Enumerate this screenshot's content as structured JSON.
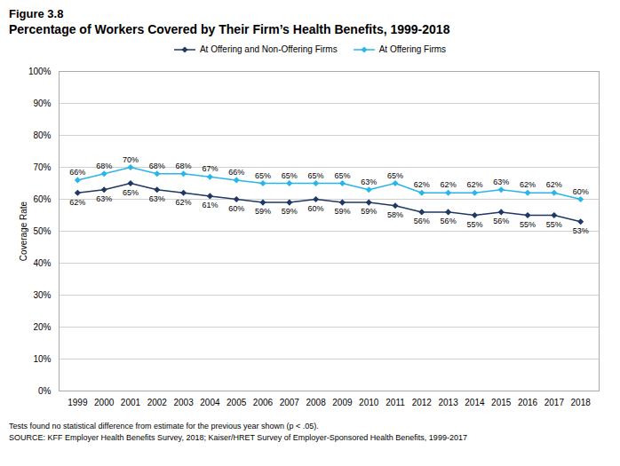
{
  "chart_data": {
    "type": "line",
    "title": "Figure 3.8",
    "subtitle": "Percentage of Workers Covered by Their Firm’s Health Benefits, 1999-2018",
    "x": [
      1999,
      2000,
      2001,
      2002,
      2003,
      2004,
      2005,
      2006,
      2007,
      2008,
      2009,
      2010,
      2011,
      2012,
      2013,
      2014,
      2015,
      2016,
      2017,
      2018
    ],
    "series": [
      {
        "name": "At Offering and Non-Offering Firms",
        "color": "#1f3864",
        "values": [
          62,
          63,
          65,
          63,
          62,
          61,
          60,
          59,
          59,
          60,
          59,
          59,
          58,
          56,
          56,
          55,
          56,
          55,
          55,
          53
        ],
        "value_labels": [
          "62%",
          "63%",
          "65%",
          "63%",
          "62%",
          "61%",
          "60%",
          "59%",
          "59%",
          "60%",
          "59%",
          "59%",
          "58%",
          "56%",
          "56%",
          "55%",
          "56%",
          "55%",
          "55%",
          "53%"
        ]
      },
      {
        "name": "At Offering Firms",
        "color": "#29b5e8",
        "values": [
          66,
          68,
          70,
          68,
          68,
          67,
          66,
          65,
          65,
          65,
          65,
          63,
          65,
          62,
          62,
          62,
          63,
          62,
          62,
          60
        ],
        "value_labels": [
          "66%",
          "68%",
          "70%",
          "68%",
          "68%",
          "67%",
          "66%",
          "65%",
          "65%",
          "65%",
          "65%",
          "63%",
          "65%",
          "62%",
          "62%",
          "62%",
          "63%",
          "62%",
          "62%",
          "60%"
        ]
      }
    ],
    "ylabel": "Coverage Rate",
    "xlim": [
      1998.3,
      2018.7
    ],
    "xticks": [
      1999,
      2000,
      2001,
      2002,
      2003,
      2004,
      2005,
      2006,
      2007,
      2008,
      2009,
      2010,
      2011,
      2012,
      2013,
      2014,
      2015,
      2016,
      2017,
      2018
    ],
    "ylim": [
      0,
      100
    ],
    "yticks": [
      {
        "value": 0,
        "label": "0%"
      },
      {
        "value": 10,
        "label": "10%"
      },
      {
        "value": 20,
        "label": "20%"
      },
      {
        "value": 30,
        "label": "30%"
      },
      {
        "value": 40,
        "label": "40%"
      },
      {
        "value": 50,
        "label": "50%"
      },
      {
        "value": 60,
        "label": "60%"
      },
      {
        "value": 70,
        "label": "70%"
      },
      {
        "value": 80,
        "label": "80%"
      },
      {
        "value": 90,
        "label": "90%"
      },
      {
        "value": 100,
        "label": "100%"
      }
    ],
    "grid": true,
    "legend": "top",
    "data_labels": true,
    "marker": "diamond",
    "annotations": [
      "Tests found no statistical difference from estimate for the previous year shown (p < .05).",
      "SOURCE: KFF Employer Health Benefits Survey, 2018; Kaiser/HRET Survey of Employer-Sponsored Health Benefits, 1999-2017"
    ]
  }
}
